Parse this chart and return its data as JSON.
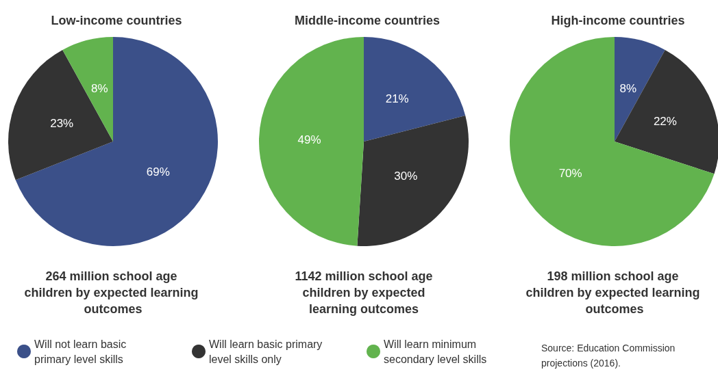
{
  "chart_data": [
    {
      "type": "pie",
      "title": "Low-income countries",
      "subtitle": "264 million school age children by expected learning outcomes",
      "categories": [
        "Will not learn basic primary level skills",
        "Will learn basic primary level skills only",
        "Will learn minimum secondary level skills"
      ],
      "values": [
        69,
        23,
        8
      ],
      "value_labels": [
        "69%",
        "23%",
        "8%"
      ],
      "colors": [
        "#3b5089",
        "#333333",
        "#62b34e"
      ],
      "legend": "bottom"
    },
    {
      "type": "pie",
      "title": "Middle-income countries",
      "subtitle": "1142 million school age children by expected learning outcomes",
      "categories": [
        null,
        null,
        null
      ],
      "values": [
        21,
        30,
        49
      ],
      "value_labels": [
        "21%",
        "30%",
        "49%"
      ],
      "colors": [
        "#3b5089",
        "#333333",
        "#62b34e"
      ]
    },
    {
      "type": "pie",
      "title": "High-income countries",
      "subtitle": "198 million school age children by expected learning outcomes",
      "categories": [
        null,
        null,
        null
      ],
      "values": [
        8,
        22,
        70
      ],
      "value_labels": [
        "8%",
        "22%",
        "70%"
      ],
      "colors": [
        "#3b5089",
        "#333333",
        "#62b34e"
      ],
      "annotations": [
        "Source: Education Commission projections (2016)."
      ]
    }
  ]
}
